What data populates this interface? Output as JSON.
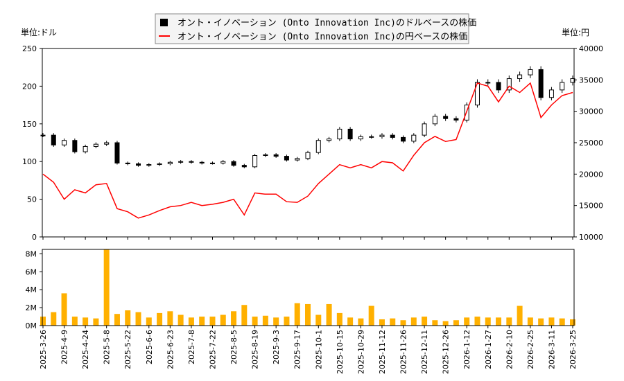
{
  "chart_data": {
    "type": "candlestick+line+bar",
    "legend": {
      "placement": "top-center",
      "entries": [
        {
          "label": "オント・イノベーション (Onto Innovation Inc)のドルベースの株価",
          "color": "#000000",
          "marker": "square"
        },
        {
          "label": "オント・イノベーション (Onto Innovation Inc)の円ベースの株価",
          "color": "#ff0000",
          "marker": "line"
        }
      ]
    },
    "left_unit": "単位:ドル",
    "right_unit": "単位:円",
    "left_axis": {
      "range": [
        0,
        250
      ],
      "ticks": [
        "0",
        "50",
        "100",
        "150",
        "200",
        "250"
      ]
    },
    "right_axis": {
      "range": [
        10000,
        40000
      ],
      "ticks": [
        "10000",
        "15000",
        "20000",
        "25000",
        "30000",
        "35000",
        "40000"
      ]
    },
    "volume_axis": {
      "range": [
        0,
        8.5
      ],
      "ticks": [
        "0M",
        "2M",
        "4M",
        "6M",
        "8M"
      ],
      "tick_values": [
        0,
        2,
        4,
        6,
        8
      ]
    },
    "x_ticks": [
      "2025-3-26",
      "2025-4-9",
      "2025-4-24",
      "2025-5-8",
      "2025-5-22",
      "2025-6-6",
      "2025-6-23",
      "2025-7-8",
      "2025-7-22",
      "2025-8-5",
      "2025-8-19",
      "2025-9-3",
      "2025-9-17",
      "2025-10-1",
      "2025-10-15",
      "2025-10-29",
      "2025-11-12",
      "2025-11-26",
      "2025-12-11",
      "2025-12-26",
      "2026-1-12",
      "2026-1-27",
      "2026-2-10",
      "2026-2-25",
      "2026-3-11",
      "2026-3-25"
    ],
    "samples_per_tick_interval": 2,
    "usd_close": [
      135,
      122,
      128,
      113,
      120,
      123,
      125,
      98,
      97,
      95,
      96,
      97,
      99,
      100,
      99,
      98,
      98,
      100,
      95,
      93,
      108,
      109,
      107,
      102,
      104,
      112,
      128,
      130,
      143,
      130,
      133,
      133,
      135,
      132,
      127,
      135,
      150,
      160,
      157,
      155,
      175,
      205,
      205,
      195,
      210,
      215,
      222,
      185,
      195,
      205,
      210
    ],
    "jpy_close": [
      20000,
      18700,
      16000,
      17500,
      17000,
      18300,
      18500,
      14500,
      14000,
      13000,
      13500,
      14200,
      14800,
      15000,
      15500,
      15000,
      15200,
      15500,
      16000,
      13500,
      17000,
      16800,
      16800,
      15600,
      15500,
      16500,
      18500,
      20000,
      21500,
      21000,
      21500,
      21000,
      22000,
      21800,
      20500,
      23000,
      25000,
      26000,
      25200,
      25500,
      30000,
      34500,
      34000,
      31500,
      34000,
      33000,
      34500,
      29000,
      31000,
      32500,
      33000
    ],
    "volume_millions": [
      1.0,
      1.5,
      3.6,
      1.0,
      0.9,
      0.8,
      8.5,
      1.3,
      1.7,
      1.5,
      0.9,
      1.4,
      1.6,
      1.2,
      0.9,
      1.0,
      1.0,
      1.2,
      1.6,
      2.3,
      1.0,
      1.1,
      0.9,
      1.0,
      2.5,
      2.4,
      1.2,
      2.4,
      1.4,
      0.9,
      0.8,
      2.2,
      0.7,
      0.8,
      0.6,
      0.9,
      1.0,
      0.6,
      0.5,
      0.6,
      0.9,
      1.0,
      0.9,
      0.9,
      0.9,
      2.2,
      0.9,
      0.8,
      0.9,
      0.8,
      0.7
    ],
    "colors": {
      "candle": "#000000",
      "jpy_line": "#ff0000",
      "volume": "#ffb000"
    },
    "grid": false
  }
}
